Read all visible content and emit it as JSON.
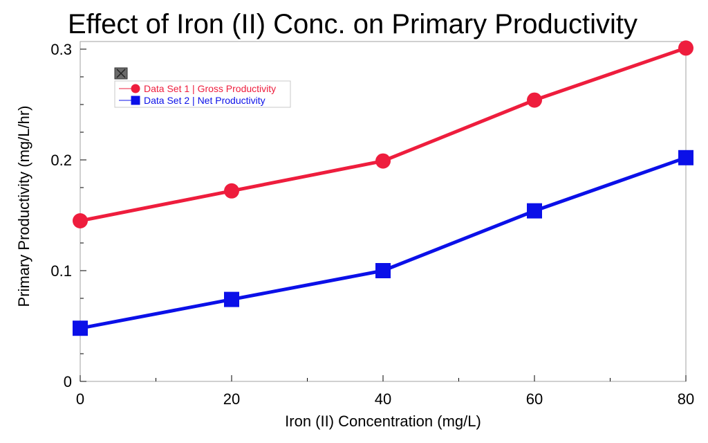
{
  "chart_data": {
    "type": "line",
    "title": "Effect of Iron (II) Conc. on Primary Productivity",
    "xlabel": "Iron (II) Concentration (mg/L)",
    "ylabel": "Primary Productivity (mg/L/hr)",
    "x": [
      0,
      20,
      40,
      60,
      80
    ],
    "xlim": [
      0,
      80
    ],
    "ylim": [
      0,
      0.31
    ],
    "xticks": [
      "0",
      "20",
      "40",
      "60",
      "80"
    ],
    "yticks": [
      "0",
      "0.1",
      "0.2",
      "0.3"
    ],
    "grid": false,
    "legend_position": "top-left",
    "series": [
      {
        "name": "Data Set 1 | Gross Productivity",
        "values": [
          0.145,
          0.172,
          0.199,
          0.254,
          0.301
        ],
        "color": "#ee1d3d",
        "marker": "circle"
      },
      {
        "name": "Data Set 2 | Net Productivity",
        "values": [
          0.048,
          0.074,
          0.1,
          0.154,
          0.202
        ],
        "color": "#0b10e8",
        "marker": "square"
      }
    ]
  },
  "legend": {
    "close_icon": "close-icon"
  }
}
